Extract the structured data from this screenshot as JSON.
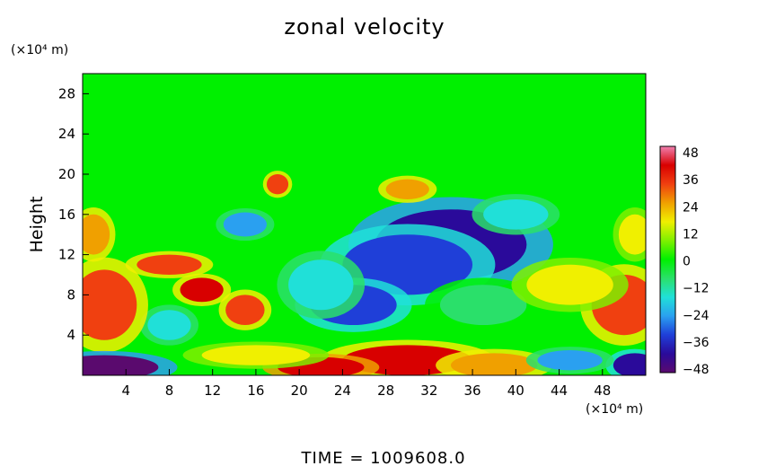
{
  "chart_data": {
    "type": "heatmap",
    "title": "zonal velocity",
    "ylabel": "Height",
    "y_unit": "(×10⁴ m)",
    "x_unit": "(×10⁴ m)",
    "xlim": [
      0,
      52
    ],
    "ylim": [
      0,
      30
    ],
    "xticks": [
      "4",
      "8",
      "12",
      "16",
      "20",
      "24",
      "28",
      "32",
      "36",
      "40",
      "44",
      "48"
    ],
    "yticks": [
      "4",
      "8",
      "12",
      "16",
      "20",
      "24",
      "28"
    ],
    "colorbar": {
      "min": -48,
      "max": 48,
      "ticks": [
        "48",
        "36",
        "24",
        "12",
        "0",
        "−12",
        "−24",
        "−36",
        "−48"
      ],
      "colors": [
        "#5a0a6e",
        "#2a0a9a",
        "#1f3fd8",
        "#2aa0f0",
        "#20e0d8",
        "#2ae06a",
        "#00f000",
        "#7ff000",
        "#f0f000",
        "#f0a000",
        "#f04010",
        "#d80000",
        "#f080b0"
      ]
    },
    "field": {
      "background_value": 2,
      "upper_layer_value": 0,
      "upper_layer_base": 20.5,
      "features": [
        {
          "x": 34,
          "y": 13,
          "rx": 7,
          "ry": 3.5,
          "value": -44
        },
        {
          "x": 30,
          "y": 11,
          "rx": 6,
          "ry": 3,
          "value": -34
        },
        {
          "x": 25,
          "y": 7,
          "rx": 4,
          "ry": 2,
          "value": -36
        },
        {
          "x": 22,
          "y": 9,
          "rx": 3,
          "ry": 2.5,
          "value": -18
        },
        {
          "x": 37,
          "y": 7,
          "rx": 4,
          "ry": 2,
          "value": -10
        },
        {
          "x": 15,
          "y": 15,
          "rx": 2,
          "ry": 1.2,
          "value": -24
        },
        {
          "x": 8,
          "y": 5,
          "rx": 2,
          "ry": 1.5,
          "value": -20
        },
        {
          "x": 40,
          "y": 16,
          "rx": 3,
          "ry": 1.5,
          "value": -14
        },
        {
          "x": 2,
          "y": 7,
          "rx": 3,
          "ry": 3.5,
          "value": 30
        },
        {
          "x": 8,
          "y": 11,
          "rx": 3,
          "ry": 1,
          "value": 34
        },
        {
          "x": 11,
          "y": 8.5,
          "rx": 2,
          "ry": 1.2,
          "value": 36
        },
        {
          "x": 15,
          "y": 6.5,
          "rx": 1.8,
          "ry": 1.5,
          "value": 34
        },
        {
          "x": 50,
          "y": 7,
          "rx": 3,
          "ry": 3,
          "value": 28
        },
        {
          "x": 45,
          "y": 9,
          "rx": 4,
          "ry": 2,
          "value": 18
        },
        {
          "x": 1,
          "y": 14,
          "rx": 1.5,
          "ry": 2,
          "value": 22
        },
        {
          "x": 51,
          "y": 14,
          "rx": 1.5,
          "ry": 2,
          "value": 16
        },
        {
          "x": 30,
          "y": 1.5,
          "rx": 6,
          "ry": 1.5,
          "value": 36
        },
        {
          "x": 22,
          "y": 0.8,
          "rx": 4,
          "ry": 1,
          "value": 40
        },
        {
          "x": 38,
          "y": 1,
          "rx": 4,
          "ry": 1.2,
          "value": 24
        },
        {
          "x": 16,
          "y": 2,
          "rx": 5,
          "ry": 1,
          "value": 16
        },
        {
          "x": 2,
          "y": 0.8,
          "rx": 5,
          "ry": 1.2,
          "value": -46
        },
        {
          "x": 51,
          "y": 1,
          "rx": 2,
          "ry": 1.2,
          "value": -40
        },
        {
          "x": 45,
          "y": 1.5,
          "rx": 3,
          "ry": 1,
          "value": -22
        },
        {
          "x": 18,
          "y": 19,
          "rx": 1,
          "ry": 1,
          "value": 32
        },
        {
          "x": 30,
          "y": 18.5,
          "rx": 2,
          "ry": 1,
          "value": 26
        }
      ]
    }
  },
  "footer": {
    "time_label": "TIME  =  1009608.0"
  }
}
